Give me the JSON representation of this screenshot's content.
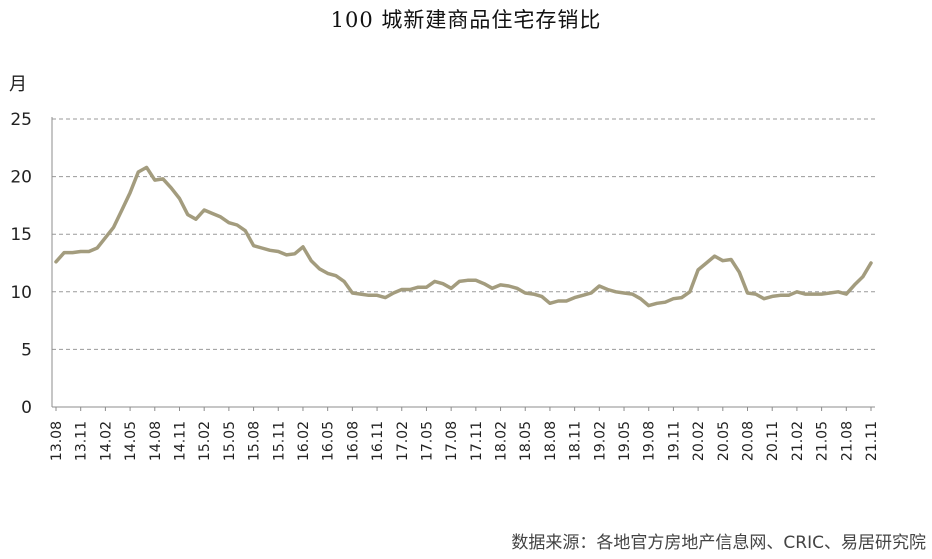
{
  "chart_data": {
    "type": "line",
    "title": "100 城新建商品住宅存销比",
    "ylabel": "月",
    "xlabel": "",
    "ylim": [
      0,
      25
    ],
    "yticks": [
      "0",
      "5",
      "10",
      "15",
      "20",
      "25"
    ],
    "grid": "horizontal-dashed",
    "legend": "none",
    "line_color": "#a39c7e",
    "xticks": [
      "13.08",
      "13.11",
      "14.02",
      "14.05",
      "14.08",
      "14.11",
      "15.02",
      "15.05",
      "15.08",
      "15.11",
      "16.02",
      "16.05",
      "16.08",
      "16.11",
      "17.02",
      "17.05",
      "17.08",
      "17.11",
      "18.02",
      "18.05",
      "18.08",
      "18.11",
      "19.02",
      "19.05",
      "19.08",
      "19.11",
      "20.02",
      "20.05",
      "20.08",
      "20.11",
      "21.02",
      "21.05",
      "21.08",
      "21.11"
    ],
    "series": [
      {
        "x": [
          "13.08",
          "13.09",
          "13.10",
          "13.11",
          "13.12",
          "14.01",
          "14.02",
          "14.03",
          "14.04",
          "14.05",
          "14.06",
          "14.07",
          "14.08",
          "14.09",
          "14.10",
          "14.11",
          "14.12",
          "15.01",
          "15.02",
          "15.03",
          "15.04",
          "15.05",
          "15.06",
          "15.07",
          "15.08",
          "15.09",
          "15.10",
          "15.11",
          "15.12",
          "16.01",
          "16.02",
          "16.03",
          "16.04",
          "16.05",
          "16.06",
          "16.07",
          "16.08",
          "16.09",
          "16.10",
          "16.11",
          "16.12",
          "17.01",
          "17.02",
          "17.03",
          "17.04",
          "17.05",
          "17.06",
          "17.07",
          "17.08",
          "17.09",
          "17.10",
          "17.11",
          "17.12",
          "18.01",
          "18.02",
          "18.03",
          "18.04",
          "18.05",
          "18.06",
          "18.07",
          "18.08",
          "18.09",
          "18.10",
          "18.11",
          "18.12",
          "19.01",
          "19.02",
          "19.03",
          "19.04",
          "19.05",
          "19.06",
          "19.07",
          "19.08",
          "19.09",
          "19.10",
          "19.11",
          "19.12",
          "20.01",
          "20.02",
          "20.03",
          "20.04",
          "20.05",
          "20.06",
          "20.07",
          "20.08",
          "20.09",
          "20.10",
          "20.11",
          "20.12",
          "21.01",
          "21.02",
          "21.03",
          "21.04",
          "21.05",
          "21.06",
          "21.07",
          "21.08",
          "21.09",
          "21.10",
          "21.11"
        ],
        "values": [
          12.6,
          13.4,
          13.4,
          13.5,
          13.5,
          13.8,
          14.7,
          15.6,
          17.1,
          18.6,
          20.4,
          20.8,
          19.7,
          19.8,
          19.0,
          18.1,
          16.7,
          16.3,
          17.1,
          16.8,
          16.5,
          16.0,
          15.8,
          15.3,
          14.0,
          13.8,
          13.6,
          13.5,
          13.2,
          13.3,
          13.9,
          12.7,
          12.0,
          11.6,
          11.4,
          10.9,
          9.9,
          9.8,
          9.7,
          9.7,
          9.5,
          9.9,
          10.2,
          10.2,
          10.4,
          10.4,
          10.9,
          10.7,
          10.3,
          10.9,
          11.0,
          11.0,
          10.7,
          10.3,
          10.6,
          10.5,
          10.3,
          9.9,
          9.8,
          9.6,
          9.0,
          9.2,
          9.2,
          9.5,
          9.7,
          9.9,
          10.5,
          10.2,
          10.0,
          9.9,
          9.8,
          9.4,
          8.8,
          9.0,
          9.1,
          9.4,
          9.5,
          10.0,
          11.9,
          12.5,
          13.1,
          12.7,
          12.8,
          11.7,
          9.9,
          9.8,
          9.4,
          9.6,
          9.7,
          9.7,
          10.0,
          9.8,
          9.8,
          9.8,
          9.9,
          10.0,
          9.8,
          10.6,
          11.3,
          12.5
        ]
      }
    ]
  },
  "source_text": "数据来源：各地官方房地产信息网、CRIC、易居研究院"
}
